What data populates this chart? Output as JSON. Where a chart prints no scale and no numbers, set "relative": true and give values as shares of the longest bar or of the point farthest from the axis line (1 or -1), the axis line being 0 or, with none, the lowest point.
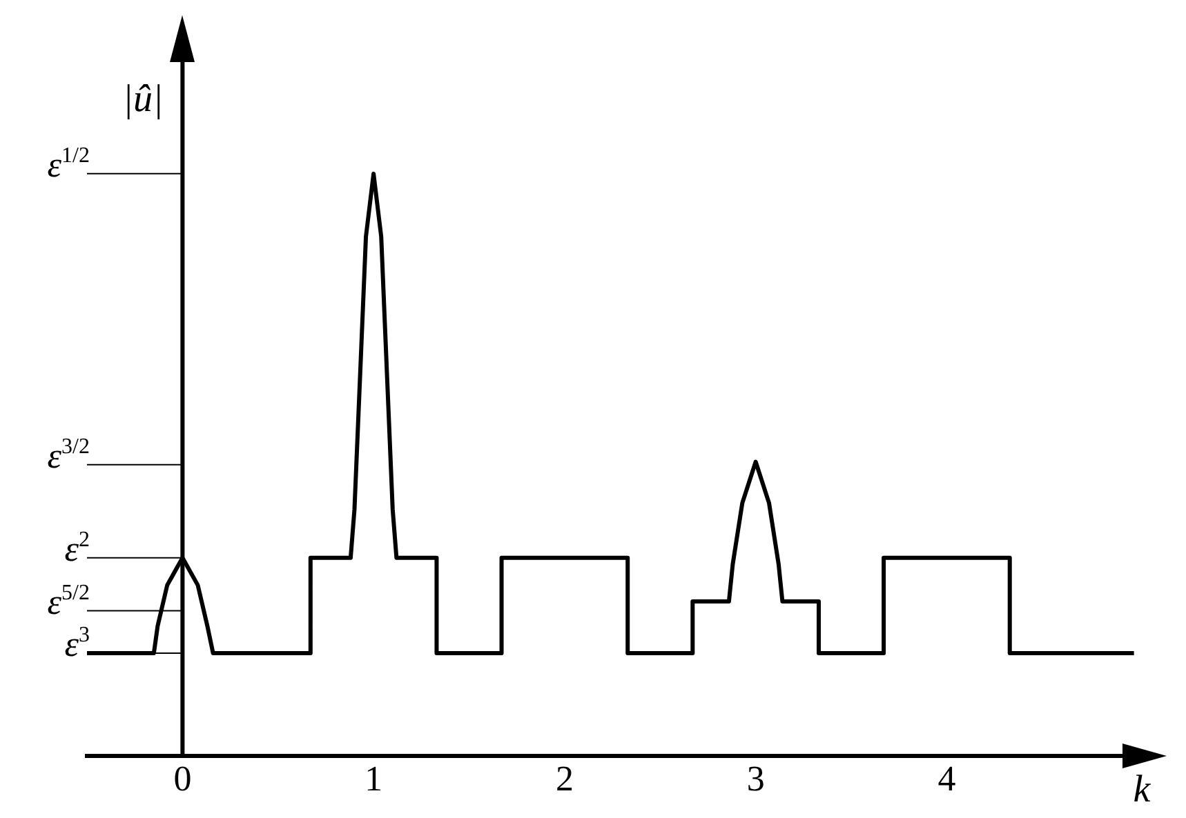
{
  "chart_data": {
    "type": "line",
    "xlabel": "k",
    "ylabel": "|û|",
    "relative": true,
    "series": [
      {
        "color": "#000000",
        "x": [
          -0.5,
          -0.15,
          -0.13,
          -0.08,
          0,
          0.08,
          0.13,
          0.16,
          0.67,
          0.67,
          0.88,
          0.9,
          0.93,
          0.96,
          1,
          1.04,
          1.07,
          1.1,
          1.12,
          1.33,
          1.33,
          1.67,
          1.67,
          2.33,
          2.33,
          2.67,
          2.67,
          2.86,
          2.88,
          2.93,
          3,
          3.07,
          3.12,
          3.14,
          3.33,
          3.33,
          3.67,
          3.67,
          4.33,
          4.33,
          4.98
        ],
        "values": [
          0.176,
          0.176,
          0.223,
          0.293,
          0.34,
          0.293,
          0.223,
          0.176,
          0.176,
          0.34,
          0.34,
          0.423,
          0.657,
          0.892,
          1,
          0.892,
          0.657,
          0.423,
          0.34,
          0.34,
          0.176,
          0.176,
          0.34,
          0.34,
          0.176,
          0.176,
          0.265,
          0.265,
          0.329,
          0.434,
          0.505,
          0.434,
          0.329,
          0.265,
          0.265,
          0.176,
          0.176,
          0.34,
          0.34,
          0.176,
          0.176
        ]
      }
    ],
    "xlim": [
      -0.5,
      5.05
    ],
    "xticks": [
      0,
      1,
      2,
      3,
      4
    ],
    "ref_lines": [
      {
        "axis": "y",
        "value": 0.176,
        "label": "ε$^{3}$"
      },
      {
        "axis": "y",
        "value": 0.249,
        "label": "ε$^{5/2}$"
      },
      {
        "axis": "y",
        "value": 0.34,
        "label": "ε$^{2}$"
      },
      {
        "axis": "y",
        "value": 0.5,
        "label": "ε$^{3/2}$"
      },
      {
        "axis": "y",
        "value": 1,
        "label": "ε$^{1/2}$"
      }
    ],
    "legend": false,
    "marker": "none",
    "line_style": "solid"
  }
}
